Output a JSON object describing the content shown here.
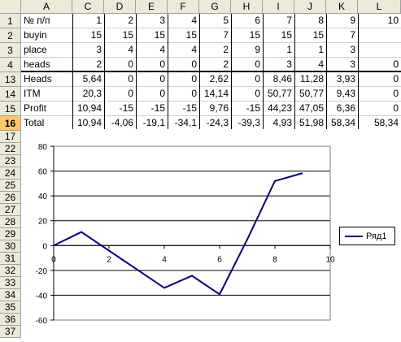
{
  "columns": [
    "A",
    "C",
    "D",
    "E",
    "F",
    "G",
    "H",
    "I",
    "J",
    "K",
    "L"
  ],
  "upper_rows": [
    {
      "row": "1",
      "label": "№ п/п",
      "values": [
        "1",
        "2",
        "3",
        "4",
        "5",
        "6",
        "7",
        "8",
        "9",
        "10"
      ]
    },
    {
      "row": "2",
      "label": "buyin",
      "values": [
        "15",
        "15",
        "15",
        "15",
        "7",
        "15",
        "15",
        "15",
        "7",
        ""
      ]
    },
    {
      "row": "3",
      "label": "place",
      "values": [
        "3",
        "4",
        "4",
        "4",
        "2",
        "9",
        "1",
        "1",
        "3",
        ""
      ]
    },
    {
      "row": "4",
      "label": "heads",
      "values": [
        "2",
        "0",
        "0",
        "0",
        "2",
        "0",
        "3",
        "4",
        "3",
        "0"
      ]
    }
  ],
  "lower_rows": [
    {
      "row": "13",
      "label": "Heads",
      "values": [
        "5,64",
        "0",
        "0",
        "0",
        "2,62",
        "0",
        "8,46",
        "11,28",
        "3,93",
        "0"
      ]
    },
    {
      "row": "14",
      "label": "ITM",
      "values": [
        "20,3",
        "0",
        "0",
        "0",
        "14,14",
        "0",
        "50,77",
        "50,77",
        "9,43",
        "0"
      ]
    },
    {
      "row": "15",
      "label": "Profit",
      "values": [
        "10,94",
        "-15",
        "-15",
        "-15",
        "9,76",
        "-15",
        "44,23",
        "47,05",
        "6,36",
        "0"
      ]
    },
    {
      "row": "16",
      "label": "Total",
      "values": [
        "10,94",
        "-4,06",
        "-19,1",
        "-34,1",
        "-24,3",
        "-39,3",
        "4,93",
        "51,98",
        "58,34",
        "58,34"
      ]
    }
  ],
  "selected_row": "16",
  "chart_rows": [
    "17",
    "22",
    "23",
    "24",
    "25",
    "26",
    "27",
    "28",
    "29",
    "30",
    "31",
    "32",
    "33",
    "34",
    "35",
    "36",
    "37"
  ],
  "chart_data": {
    "type": "line",
    "title": "",
    "xlabel": "",
    "ylabel": "",
    "x": [
      0,
      1,
      2,
      3,
      4,
      5,
      6,
      7,
      8,
      9
    ],
    "series": [
      {
        "name": "Ряд1",
        "color": "#000080",
        "values": [
          0,
          10.94,
          -4.06,
          -19.1,
          -34.1,
          -24.3,
          -39.3,
          4.93,
          51.98,
          58.34
        ]
      }
    ],
    "xlim": [
      0,
      10
    ],
    "ylim": [
      -60,
      80
    ],
    "x_ticks": [
      "0",
      "2",
      "4",
      "6",
      "8",
      "10"
    ],
    "y_ticks": [
      "80",
      "60",
      "40",
      "20",
      "0",
      "-20",
      "-40",
      "-60"
    ],
    "grid": "horizontal",
    "legend_position": "right"
  }
}
